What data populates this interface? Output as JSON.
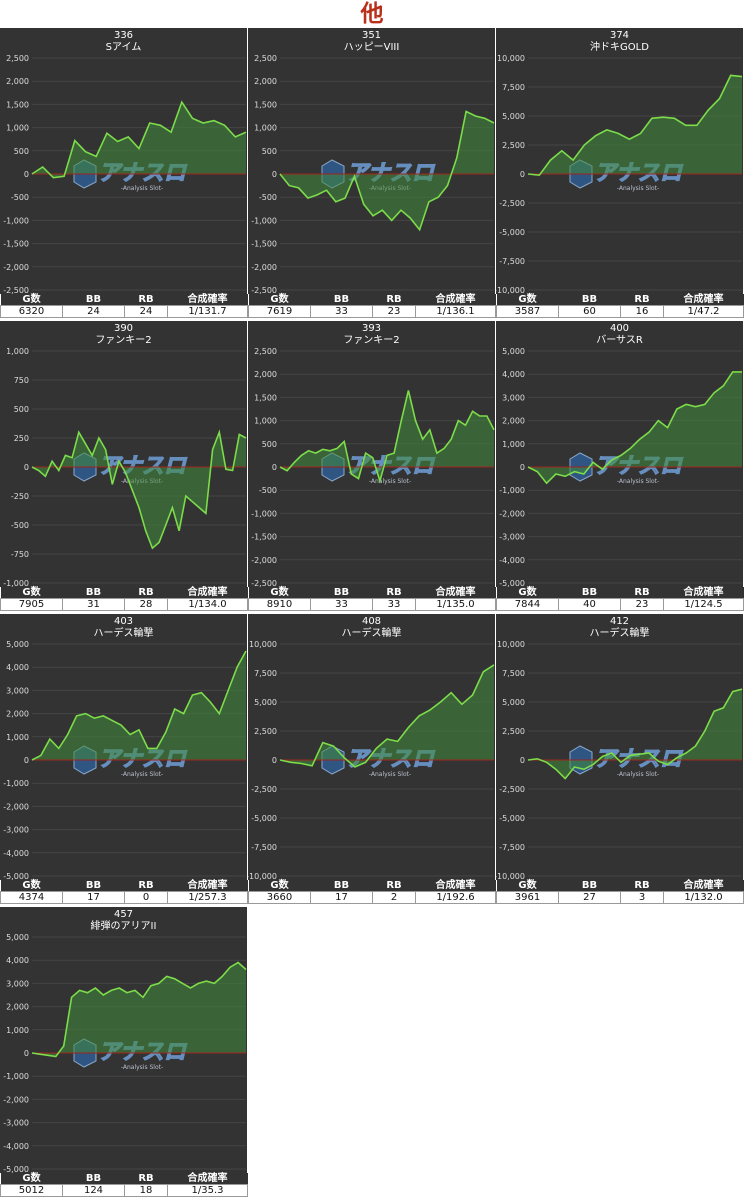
{
  "page_title": "他",
  "stat_headers": [
    "G数",
    "BB",
    "RB",
    "合成確率"
  ],
  "watermark": {
    "main": "アナスロ",
    "sub": "-Analysis Slot-",
    "logo_icon": "anaslo-logo-icon"
  },
  "colors": {
    "line": "#7cdc4a",
    "fill": "#3f8a3a",
    "zero_line": "#a0241c",
    "bg": "#333333",
    "title": "#b8301a"
  },
  "chart_data": [
    {
      "type": "area",
      "number": "336",
      "name": "Sアイム",
      "ylim": [
        -2500,
        2500
      ],
      "yticks": [
        -2500,
        -2000,
        -1500,
        -1000,
        -500,
        0,
        500,
        1000,
        1500,
        2000,
        2500
      ],
      "values": [
        0,
        150,
        -80,
        -50,
        720,
        480,
        380,
        880,
        700,
        800,
        550,
        1100,
        1050,
        900,
        1550,
        1200,
        1100,
        1150,
        1050,
        800,
        900
      ],
      "stats": {
        "games": "6320",
        "bb": "24",
        "rb": "24",
        "rate": "1/131.7"
      }
    },
    {
      "type": "area",
      "number": "351",
      "name": "ハッピーVIII",
      "ylim": [
        -2500,
        2500
      ],
      "yticks": [
        -2500,
        -2000,
        -1500,
        -1000,
        -500,
        0,
        500,
        1000,
        1500,
        2000,
        2500
      ],
      "values": [
        0,
        -250,
        -300,
        -520,
        -450,
        -350,
        -600,
        -520,
        -50,
        -650,
        -900,
        -780,
        -1000,
        -780,
        -950,
        -1200,
        -600,
        -500,
        -250,
        350,
        1350,
        1250,
        1200,
        1100
      ],
      "stats": {
        "games": "7619",
        "bb": "33",
        "rb": "23",
        "rate": "1/136.1"
      }
    },
    {
      "type": "area",
      "number": "374",
      "name": "沖ドキGOLD",
      "ylim": [
        -10000,
        10000
      ],
      "yticks": [
        -10000,
        -7500,
        -5000,
        -2500,
        0,
        2500,
        5000,
        7500,
        10000
      ],
      "values": [
        0,
        -100,
        1200,
        2000,
        1200,
        2500,
        3300,
        3800,
        3500,
        3000,
        3500,
        4800,
        4900,
        4800,
        4200,
        4200,
        5500,
        6500,
        8500,
        8400
      ],
      "stats": {
        "games": "3587",
        "bb": "60",
        "rb": "16",
        "rate": "1/47.2"
      }
    },
    {
      "type": "area",
      "number": "390",
      "name": "ファンキー2",
      "ylim": [
        -1000,
        1000
      ],
      "yticks": [
        -1000,
        -750,
        -500,
        -250,
        0,
        250,
        500,
        750,
        1000
      ],
      "values": [
        0,
        -30,
        -80,
        50,
        -30,
        100,
        80,
        300,
        200,
        100,
        250,
        150,
        -150,
        50,
        -50,
        -200,
        -350,
        -550,
        -700,
        -650,
        -500,
        -350,
        -550,
        -250,
        -300,
        -350,
        -400,
        150,
        300,
        -20,
        -30,
        280,
        250
      ],
      "stats": {
        "games": "7905",
        "bb": "31",
        "rb": "28",
        "rate": "1/134.0"
      }
    },
    {
      "type": "area",
      "number": "393",
      "name": "ファンキー2",
      "ylim": [
        -2500,
        2500
      ],
      "yticks": [
        -2500,
        -2000,
        -1500,
        -1000,
        -500,
        0,
        500,
        1000,
        1500,
        2000,
        2500
      ],
      "values": [
        0,
        -80,
        100,
        250,
        350,
        300,
        380,
        350,
        400,
        550,
        -150,
        -250,
        300,
        200,
        -300,
        250,
        300,
        1000,
        1650,
        1000,
        600,
        800,
        300,
        400,
        600,
        1000,
        900,
        1200,
        1100,
        1100,
        800
      ],
      "stats": {
        "games": "8910",
        "bb": "33",
        "rb": "33",
        "rate": "1/135.0"
      }
    },
    {
      "type": "area",
      "number": "400",
      "name": "バーサスR",
      "ylim": [
        -5000,
        5000
      ],
      "yticks": [
        -5000,
        -4000,
        -3000,
        -2000,
        -1000,
        0,
        1000,
        2000,
        3000,
        4000,
        5000
      ],
      "values": [
        0,
        -200,
        -700,
        -300,
        -400,
        -200,
        -300,
        200,
        -100,
        300,
        500,
        800,
        1200,
        1500,
        2000,
        1700,
        2500,
        2700,
        2600,
        2700,
        3200,
        3500,
        4100,
        4100
      ],
      "stats": {
        "games": "7844",
        "bb": "40",
        "rb": "23",
        "rate": "1/124.5"
      }
    },
    {
      "type": "area",
      "number": "403",
      "name": "ハーデス輪撃",
      "ylim": [
        -5000,
        5000
      ],
      "yticks": [
        -5000,
        -4000,
        -3000,
        -2000,
        -1000,
        0,
        1000,
        2000,
        3000,
        4000,
        5000
      ],
      "values": [
        0,
        200,
        900,
        500,
        1100,
        1900,
        2000,
        1800,
        1900,
        1700,
        1500,
        1100,
        1300,
        500,
        500,
        1200,
        2200,
        2000,
        2800,
        2900,
        2500,
        2000,
        3000,
        4000,
        4700
      ],
      "stats": {
        "games": "4374",
        "bb": "17",
        "rb": "0",
        "rate": "1/257.3"
      }
    },
    {
      "type": "area",
      "number": "408",
      "name": "ハーデス輪撃",
      "ylim": [
        -10000,
        10000
      ],
      "yticks": [
        -10000,
        -7500,
        -5000,
        -2500,
        0,
        2500,
        5000,
        7500,
        10000
      ],
      "values": [
        0,
        -200,
        -300,
        -500,
        1500,
        1200,
        200,
        -600,
        -200,
        1000,
        1800,
        1600,
        2800,
        3800,
        4300,
        5000,
        5800,
        4800,
        5600,
        7600,
        8200
      ],
      "stats": {
        "games": "3660",
        "bb": "17",
        "rb": "2",
        "rate": "1/192.6"
      }
    },
    {
      "type": "area",
      "number": "412",
      "name": "ハーデス輪撃",
      "ylim": [
        -10000,
        10000
      ],
      "yticks": [
        -10000,
        -7500,
        -5000,
        -2500,
        0,
        2500,
        5000,
        7500,
        10000
      ],
      "values": [
        0,
        100,
        -200,
        -800,
        -1600,
        -600,
        -800,
        -400,
        300,
        600,
        -200,
        400,
        500,
        600,
        -100,
        -400,
        200,
        600,
        1200,
        2500,
        4200,
        4500,
        5900,
        6100
      ],
      "stats": {
        "games": "3961",
        "bb": "27",
        "rb": "3",
        "rate": "1/132.0"
      }
    },
    {
      "type": "area",
      "number": "457",
      "name": "緋弾のアリアII",
      "ylim": [
        -5000,
        5000
      ],
      "yticks": [
        -5000,
        -4000,
        -3000,
        -2000,
        -1000,
        0,
        1000,
        2000,
        3000,
        4000,
        5000
      ],
      "values": [
        0,
        -50,
        -100,
        -150,
        300,
        2400,
        2700,
        2600,
        2800,
        2500,
        2700,
        2800,
        2600,
        2700,
        2400,
        2900,
        3000,
        3300,
        3200,
        3000,
        2800,
        3000,
        3100,
        3000,
        3300,
        3700,
        3900,
        3600
      ],
      "stats": {
        "games": "5012",
        "bb": "124",
        "rb": "18",
        "rate": "1/35.3"
      }
    }
  ]
}
